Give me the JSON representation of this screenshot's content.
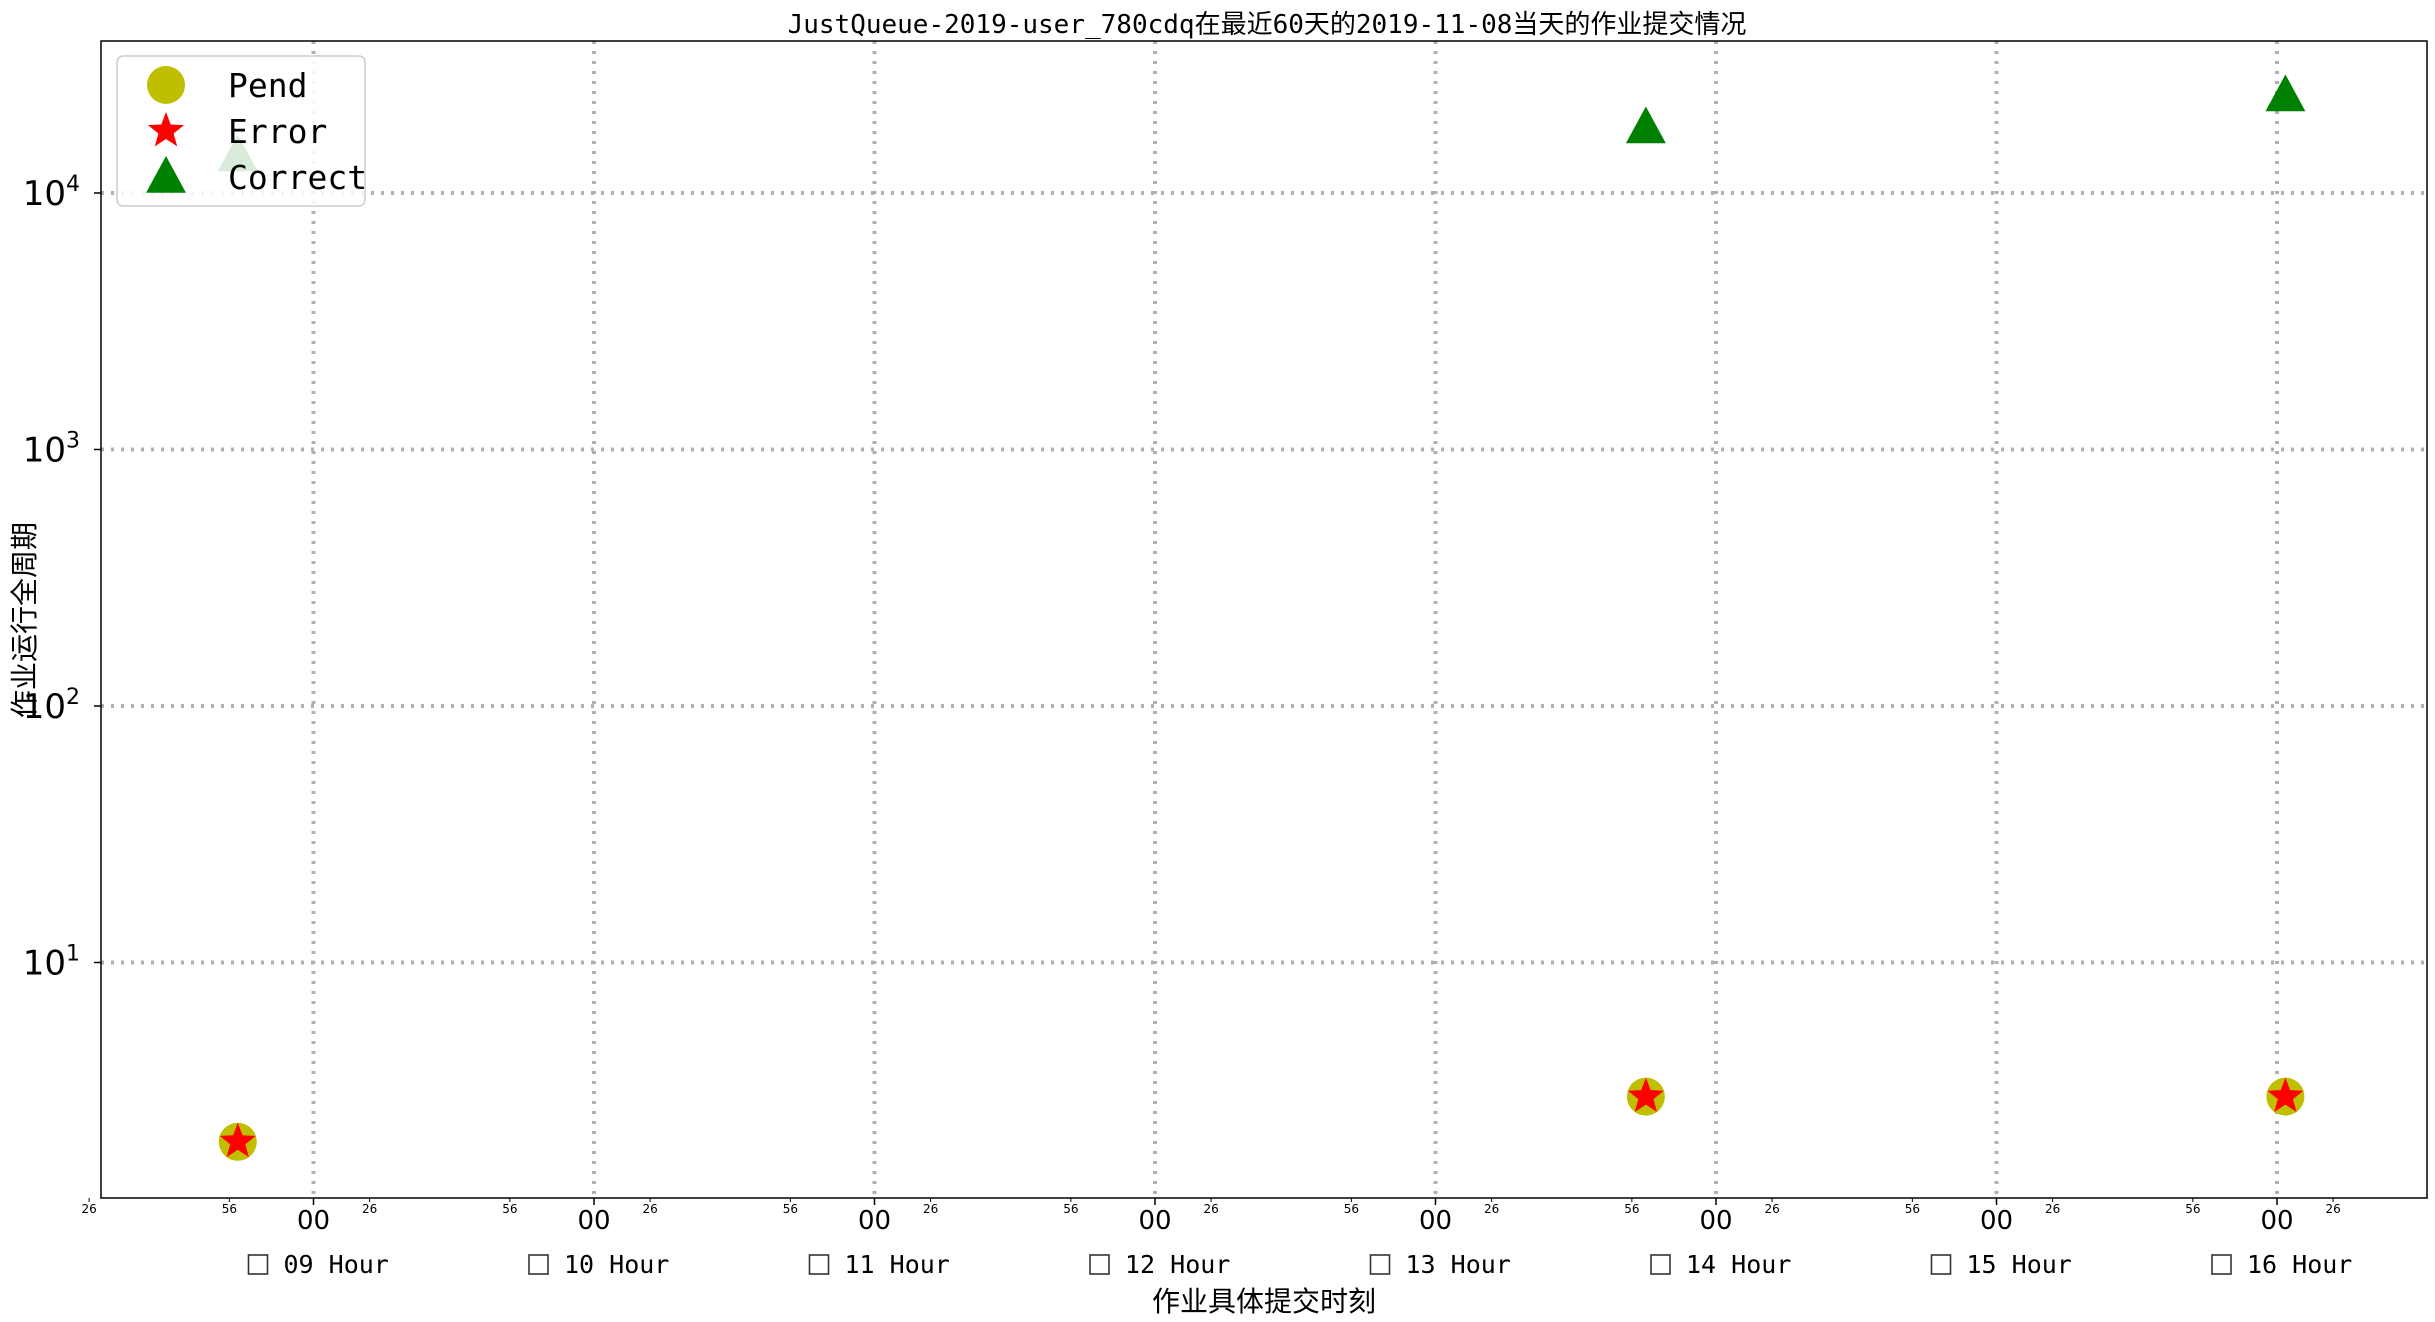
{
  "chart_data": {
    "type": "scatter",
    "title": "JustQueue-2019-user_780cdq在最近60天的2019-11-08当天的作业提交情况",
    "xlabel": "作业具体提交时刻",
    "ylabel": "作业运行全周期",
    "yscale": "log",
    "ylim": [
      1.4,
      40000
    ],
    "xlim": [
      8.1,
      16.42
    ],
    "y_ticks": [
      {
        "base": "10",
        "exp": "1",
        "value": 10
      },
      {
        "base": "10",
        "exp": "2",
        "value": 100
      },
      {
        "base": "10",
        "exp": "3",
        "value": 1000
      },
      {
        "base": "10",
        "exp": "4",
        "value": 10000
      }
    ],
    "x_major_ticks": [
      {
        "label": "00",
        "value": 9
      },
      {
        "label": "00",
        "value": 10
      },
      {
        "label": "00",
        "value": 11
      },
      {
        "label": "00",
        "value": 12
      },
      {
        "label": "00",
        "value": 13
      },
      {
        "label": "00",
        "value": 14
      },
      {
        "label": "00",
        "value": 15
      },
      {
        "label": "00",
        "value": 16
      }
    ],
    "x_minor_ticks": [
      {
        "label": "26",
        "value": 8.2
      },
      {
        "label": "56",
        "value": 8.7
      },
      {
        "label": "26",
        "value": 9.2
      },
      {
        "label": "56",
        "value": 9.7
      },
      {
        "label": "26",
        "value": 10.2
      },
      {
        "label": "56",
        "value": 10.7
      },
      {
        "label": "26",
        "value": 11.2
      },
      {
        "label": "56",
        "value": 11.7
      },
      {
        "label": "26",
        "value": 12.2
      },
      {
        "label": "56",
        "value": 12.7
      },
      {
        "label": "26",
        "value": 13.2
      },
      {
        "label": "56",
        "value": 13.7
      },
      {
        "label": "26",
        "value": 14.2
      },
      {
        "label": "56",
        "value": 14.7
      },
      {
        "label": "26",
        "value": 15.2
      },
      {
        "label": "56",
        "value": 15.7
      },
      {
        "label": "26",
        "value": 16.2
      }
    ],
    "hour_labels": [
      {
        "label": "09 Hour",
        "value": 9
      },
      {
        "label": "10 Hour",
        "value": 10
      },
      {
        "label": "11 Hour",
        "value": 11
      },
      {
        "label": "12 Hour",
        "value": 12
      },
      {
        "label": "13 Hour",
        "value": 13
      },
      {
        "label": "14 Hour",
        "value": 14
      },
      {
        "label": "15 Hour",
        "value": 15
      },
      {
        "label": "16 Hour",
        "value": 16
      }
    ],
    "grid": true,
    "legend_position": "top-left",
    "series": [
      {
        "name": "Pend",
        "marker": "circle",
        "color": "#bfbf00",
        "points": [
          {
            "x": 8.73,
            "y": 2
          },
          {
            "x": 13.75,
            "y": 3
          },
          {
            "x": 16.03,
            "y": 3
          }
        ]
      },
      {
        "name": "Error",
        "marker": "star",
        "color": "#ff0000",
        "points": [
          {
            "x": 8.73,
            "y": 2
          },
          {
            "x": 13.75,
            "y": 3
          },
          {
            "x": 16.03,
            "y": 3
          }
        ]
      },
      {
        "name": "Correct",
        "marker": "triangle",
        "color": "#008000",
        "points": [
          {
            "x": 8.73,
            "y": 14000
          },
          {
            "x": 13.75,
            "y": 18000
          },
          {
            "x": 16.03,
            "y": 24000
          }
        ]
      }
    ]
  }
}
